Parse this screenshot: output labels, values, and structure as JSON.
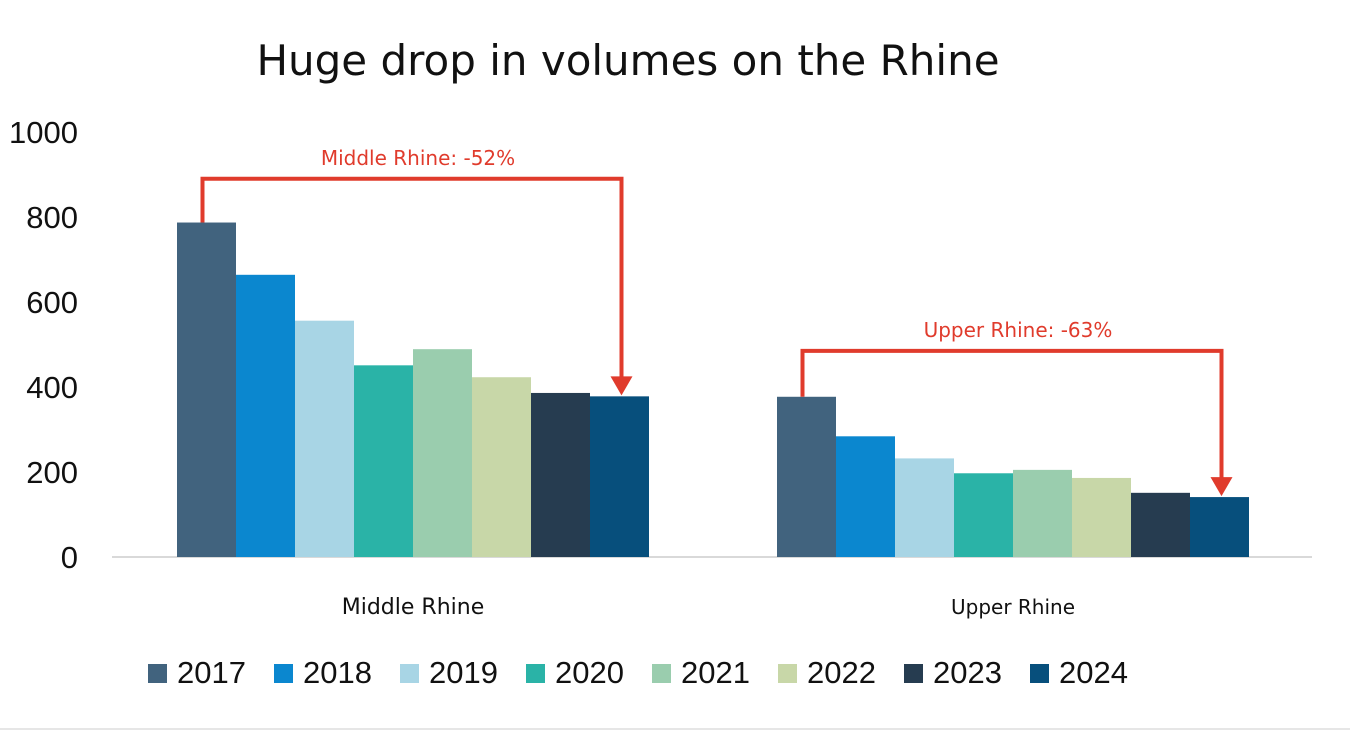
{
  "chart_data": {
    "type": "bar",
    "title": "Huge drop in volumes on the Rhine",
    "categories": [
      "Middle Rhine",
      "Upper Rhine"
    ],
    "series": [
      {
        "name": "2017",
        "color": "#41637e",
        "values": [
          787,
          377
        ]
      },
      {
        "name": "2018",
        "color": "#0b87cf",
        "values": [
          664,
          284
        ]
      },
      {
        "name": "2019",
        "color": "#a8d5e5",
        "values": [
          556,
          232
        ]
      },
      {
        "name": "2020",
        "color": "#2ab3a7",
        "values": [
          451,
          197
        ]
      },
      {
        "name": "2021",
        "color": "#9acdae",
        "values": [
          489,
          205
        ]
      },
      {
        "name": "2022",
        "color": "#c8d7a8",
        "values": [
          423,
          186
        ]
      },
      {
        "name": "2023",
        "color": "#263c50",
        "values": [
          386,
          151
        ]
      },
      {
        "name": "2024",
        "color": "#074f7c",
        "values": [
          378,
          141
        ]
      }
    ],
    "ylim": [
      0,
      1000
    ],
    "yticks": [
      "0",
      "200",
      "400",
      "600",
      "800",
      "1000"
    ],
    "xlabel": "",
    "ylabel": "",
    "grid": false,
    "legend": "bottom",
    "annotations": [
      {
        "text": "Middle Rhine: -52%",
        "category": "Middle Rhine",
        "color": "#e03b2c",
        "bracket_level": 890
      },
      {
        "text": "Upper Rhine: -63%",
        "category": "Upper Rhine",
        "color": "#e03b2c",
        "bracket_level": 485
      }
    ]
  }
}
